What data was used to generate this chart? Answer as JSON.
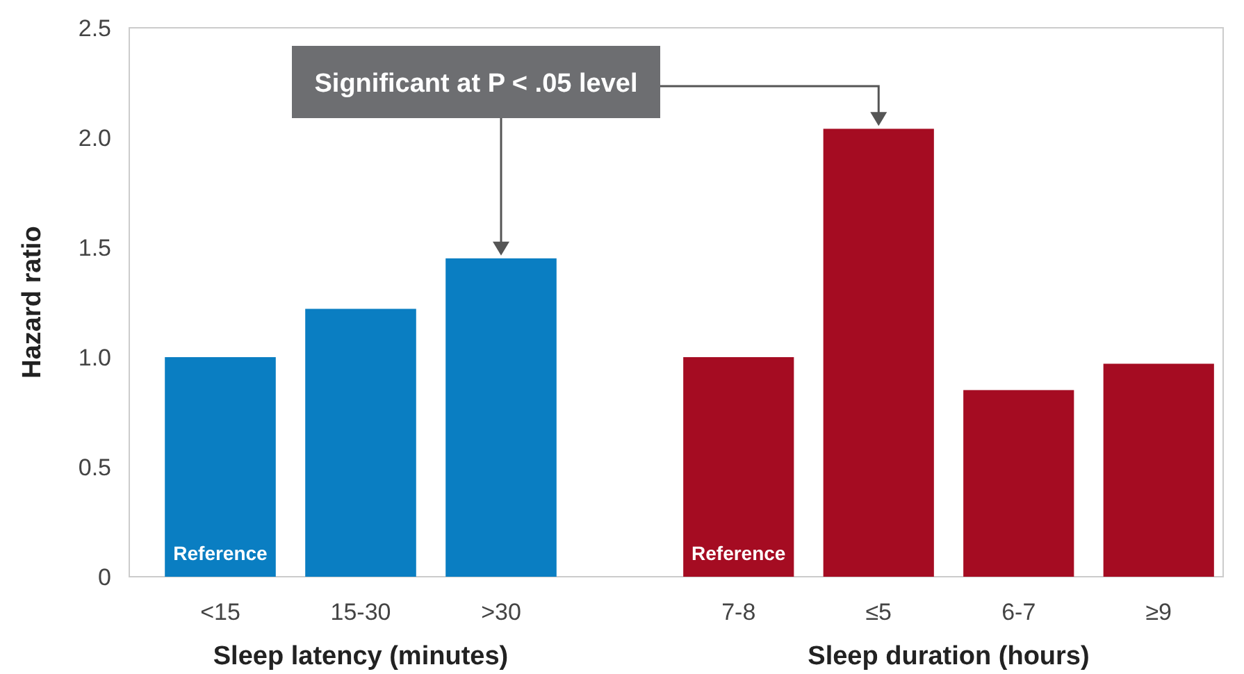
{
  "chart_data": [
    {
      "type": "bar",
      "ylabel": "Hazard ratio",
      "xlabel": "Sleep latency (minutes)",
      "categories": [
        "<15",
        "15-30",
        ">30"
      ],
      "values": [
        1.0,
        1.22,
        1.45
      ],
      "color": "#0a7ec2",
      "ylim": [
        0,
        2.5
      ],
      "yticks": [
        0,
        0.5,
        {
          "value": 1,
          "label": "1.0"
        },
        1.5,
        {
          "value": 2,
          "label": "2.0"
        },
        2.5
      ],
      "grid": false,
      "annotations": [
        {
          "text": "Reference",
          "x": "<15",
          "y": 0
        },
        "Significant at P < .05 level"
      ]
    },
    {
      "type": "bar",
      "xlabel": "Sleep duration (hours)",
      "categories": [
        "7-8",
        "≤5",
        "6-7",
        "≥9"
      ],
      "values": [
        1.0,
        2.04,
        0.85,
        0.97
      ],
      "color": "#a50c22",
      "ylim": [
        0,
        2.5
      ],
      "grid": false,
      "tick_labels": "x",
      "annotations": [
        {
          "text": "Reference",
          "x": "7-8",
          "y": 0
        }
      ]
    }
  ]
}
